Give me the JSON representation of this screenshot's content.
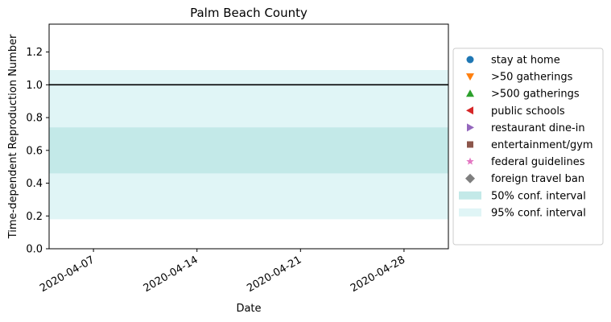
{
  "chart_data": {
    "type": "area",
    "title": "Palm Beach County",
    "xlabel": "Date",
    "ylabel": "Time-dependent Reproduction Number",
    "xlim": [
      "2020-04-04",
      "2020-05-01"
    ],
    "ylim": [
      0,
      1.37
    ],
    "x_ticks": [
      "2020-04-07",
      "2020-04-14",
      "2020-04-21",
      "2020-04-28"
    ],
    "y_ticks": [
      "0.0",
      "0.2",
      "0.4",
      "0.6",
      "0.8",
      "1.0",
      "1.2"
    ],
    "y_tick_values": [
      0.0,
      0.2,
      0.4,
      0.6,
      0.8,
      1.0,
      1.2
    ],
    "reference_line": {
      "y": 1.0,
      "color": "#000000"
    },
    "bands": [
      {
        "name": "95% conf. interval",
        "x": [
          "2020-04-04",
          "2020-05-01"
        ],
        "lower": [
          0.18,
          0.18
        ],
        "upper": [
          1.09,
          1.09
        ],
        "color": "#e0f5f6"
      },
      {
        "name": "50% conf. interval",
        "x": [
          "2020-04-04",
          "2020-05-01"
        ],
        "lower": [
          0.46,
          0.46
        ],
        "upper": [
          0.74,
          0.74
        ],
        "color": "#c3e9e8"
      }
    ],
    "grid": false,
    "legend_placement": "right, outside plot",
    "legend": [
      {
        "label": "stay at home",
        "marker": "circle",
        "color": "#1f77b4"
      },
      {
        "label": ">50 gatherings",
        "marker": "triangle-down",
        "color": "#ff7f0e"
      },
      {
        "label": ">500 gatherings",
        "marker": "triangle-up",
        "color": "#2ca02c"
      },
      {
        "label": "public schools",
        "marker": "triangle-left",
        "color": "#d62728"
      },
      {
        "label": "restaurant dine-in",
        "marker": "triangle-right",
        "color": "#9467bd"
      },
      {
        "label": "entertainment/gym",
        "marker": "square",
        "color": "#8c564b"
      },
      {
        "label": "federal guidelines",
        "marker": "star",
        "color": "#e377c2"
      },
      {
        "label": "foreign travel ban",
        "marker": "diamond",
        "color": "#7f7f7f"
      },
      {
        "label": "50% conf. interval",
        "marker": "patch",
        "color": "#c3e9e8"
      },
      {
        "label": "95% conf. interval",
        "marker": "patch",
        "color": "#e0f5f6"
      }
    ]
  }
}
